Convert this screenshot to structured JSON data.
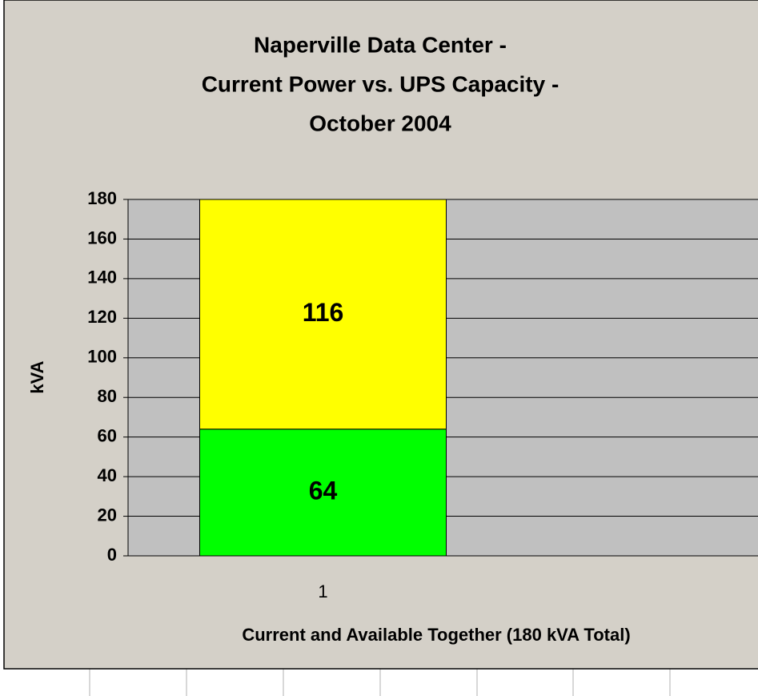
{
  "chart_data": {
    "type": "stacked-bar",
    "title": [
      "Naperville Data Center -",
      "Current Power vs. UPS Capacity -",
      "October 2004"
    ],
    "ylabel": "kVA",
    "xlabel": "Current and Available Together (180 kVA Total)",
    "categories": [
      "1"
    ],
    "series": [
      {
        "color": "#00ff00",
        "values": [
          64
        ]
      },
      {
        "color": "#ffff00",
        "values": [
          116
        ]
      }
    ],
    "ylim": [
      0,
      180
    ],
    "yticks": [
      0,
      20,
      40,
      60,
      80,
      100,
      120,
      140,
      160,
      180
    ],
    "grid": true
  }
}
